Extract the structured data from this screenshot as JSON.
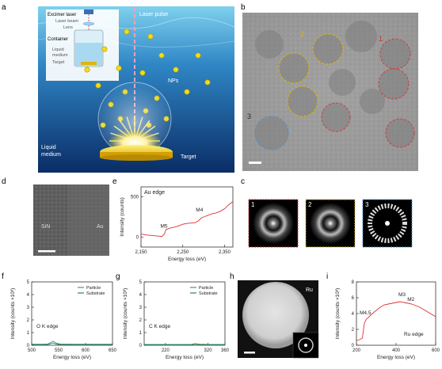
{
  "panels": {
    "a": {
      "letter": "a",
      "labels": {
        "excimer_laser": "Excimer laser",
        "laser_beam": "Laser beam",
        "lens": "Lens",
        "container": "Container",
        "liquid_medium_inset_1": "Liquid",
        "liquid_medium_inset_2": "medium",
        "target_inset": "Target",
        "laser_pulse": "Laser pulse",
        "nps": "NPs",
        "liquid_medium_1": "Liquid",
        "liquid_medium_2": "medium",
        "target": "Target"
      }
    },
    "b": {
      "letter": "b",
      "groups": [
        "1",
        "2",
        "3"
      ]
    },
    "c": {
      "letter": "c",
      "insets": [
        "1",
        "2",
        "3"
      ]
    },
    "d": {
      "letter": "d",
      "labels": [
        "SiN",
        "Au"
      ]
    },
    "e": {
      "letter": "e",
      "chart_data": {
        "type": "line",
        "title": "Au edge",
        "xlabel": "Energy loss (eV)",
        "ylabel": "Intensity (counts)",
        "xlim": [
          2150,
          2370
        ],
        "ylim": [
          -120,
          620
        ],
        "xticks": [
          "2,150",
          "2,250",
          "2,350"
        ],
        "yticks": [
          "0",
          "500"
        ],
        "annotations": [
          {
            "text": "M5",
            "x": 2205,
            "y": 120
          },
          {
            "text": "M4",
            "x": 2290,
            "y": 320
          }
        ],
        "series": [
          {
            "color": "#e03030",
            "x": [
              2150,
              2160,
              2170,
              2180,
              2190,
              2200,
              2206,
              2210,
              2220,
              2230,
              2240,
              2250,
              2260,
              2270,
              2280,
              2288,
              2295,
              2300,
              2310,
              2320,
              2330,
              2340,
              2350,
              2360,
              2370
            ],
            "y": [
              40,
              30,
              25,
              20,
              15,
              10,
              40,
              95,
              115,
              125,
              140,
              160,
              170,
              175,
              180,
              205,
              240,
              250,
              270,
              290,
              300,
              320,
              350,
              400,
              440
            ]
          }
        ]
      }
    },
    "f": {
      "letter": "f",
      "chart_data": {
        "type": "line",
        "annotation": "O K edge",
        "xlabel": "Energy loss (eV)",
        "ylabel": "Intensity (counts ×10³)",
        "xlim": [
          500,
          650
        ],
        "ylim": [
          0,
          5
        ],
        "xticks": [
          "500",
          "550",
          "600",
          "650"
        ],
        "yticks": [
          "0",
          "1",
          "2",
          "3",
          "4",
          "5"
        ],
        "legend": [
          "Particle",
          "Substrate"
        ],
        "legend_position": "top-right",
        "series": [
          {
            "name": "Particle",
            "color": "#3a8fc0",
            "x": [
              500,
              520,
              530,
              535,
              540,
              545,
              550,
              560,
              580,
              600,
              620,
              650
            ],
            "y": [
              0.08,
              0.08,
              0.1,
              0.22,
              0.32,
              0.18,
              0.1,
              0.09,
              0.08,
              0.08,
              0.08,
              0.08
            ]
          },
          {
            "name": "Substrate",
            "color": "#2a8a3a",
            "x": [
              500,
              520,
              530,
              535,
              540,
              545,
              550,
              560,
              580,
              600,
              620,
              650
            ],
            "y": [
              0.05,
              0.05,
              0.06,
              0.12,
              0.18,
              0.1,
              0.06,
              0.05,
              0.05,
              0.05,
              0.05,
              0.05
            ]
          }
        ]
      }
    },
    "g": {
      "letter": "g",
      "chart_data": {
        "type": "line",
        "annotation": "C K edge",
        "xlabel": "Energy loss (eV)",
        "ylabel": "Intensity (counts ×10³)",
        "xlim": [
          170,
          360
        ],
        "ylim": [
          0,
          5
        ],
        "xticks": [
          "220",
          "320",
          "360"
        ],
        "yticks": [
          "0",
          "1",
          "2",
          "3",
          "4",
          "5"
        ],
        "legend": [
          "Particle",
          "Substrate"
        ],
        "legend_position": "top-right",
        "series": [
          {
            "name": "Particle",
            "color": "#3a8fc0",
            "x": [
              170,
              200,
              220,
              250,
              280,
              285,
              290,
              300,
              320,
              340,
              360
            ],
            "y": [
              0.06,
              0.06,
              0.06,
              0.06,
              0.06,
              0.1,
              0.12,
              0.08,
              0.06,
              0.06,
              0.06
            ]
          },
          {
            "name": "Substrate",
            "color": "#2a8a3a",
            "x": [
              170,
              200,
              220,
              250,
              280,
              285,
              290,
              300,
              320,
              340,
              360
            ],
            "y": [
              0.04,
              0.04,
              0.04,
              0.04,
              0.04,
              0.07,
              0.09,
              0.06,
              0.04,
              0.04,
              0.04
            ]
          }
        ]
      }
    },
    "h": {
      "letter": "h",
      "label": "Ru"
    },
    "i": {
      "letter": "i",
      "chart_data": {
        "type": "line",
        "annotation": "Ru edge",
        "xlabel": "Energy loss (eV)",
        "ylabel": "Intensity (counts ×10³)",
        "xlim": [
          200,
          600
        ],
        "ylim": [
          0,
          8
        ],
        "xticks": [
          "200",
          "400",
          "600"
        ],
        "yticks": [
          "0",
          "2",
          "4",
          "6",
          "8"
        ],
        "annotations": [
          {
            "text": "M4,5",
            "x": 245,
            "y": 3.9
          },
          {
            "text": "M3",
            "x": 430,
            "y": 6.2
          },
          {
            "text": "M2",
            "x": 475,
            "y": 5.6
          }
        ],
        "series": [
          {
            "color": "#e03030",
            "x": [
              200,
              215,
              230,
              240,
              250,
              260,
              280,
              300,
              320,
              340,
              360,
              380,
              400,
              420,
              440,
              460,
              480,
              500,
              520,
              540,
              560,
              580,
              600
            ],
            "y": [
              0.6,
              0.7,
              0.9,
              2.8,
              3.3,
              3.5,
              4.0,
              4.4,
              4.8,
              5.1,
              5.2,
              5.3,
              5.4,
              5.5,
              5.4,
              5.3,
              5.2,
              5.0,
              4.8,
              4.5,
              4.2,
              3.9,
              3.6
            ]
          }
        ]
      }
    }
  }
}
